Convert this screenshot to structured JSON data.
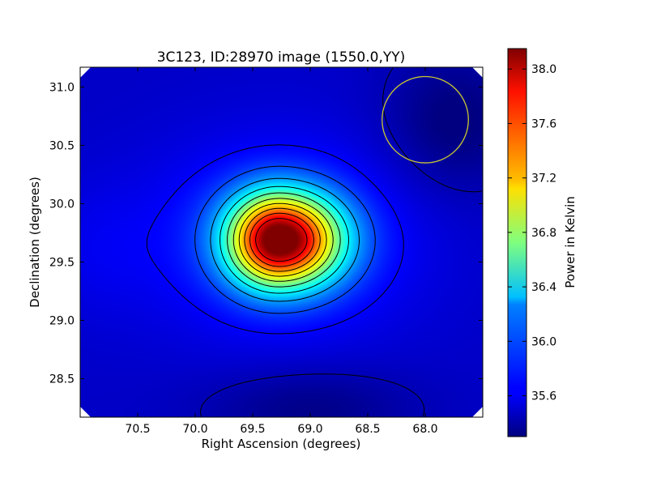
{
  "chart_data": {
    "type": "heatmap",
    "title": "3C123, ID:28970 image (1550.0,YY)",
    "xlabel": "Right Ascension (degrees)",
    "ylabel": "Declination (degrees)",
    "xlim": [
      71.0,
      67.5
    ],
    "ylim": [
      28.17,
      31.17
    ],
    "x_ticks": [
      70.5,
      70.0,
      69.5,
      69.0,
      68.5,
      68.0
    ],
    "y_ticks": [
      28.5,
      29.0,
      29.5,
      30.0,
      30.5,
      31.0
    ],
    "colorbar": {
      "label": "Power in Kelvin",
      "range": [
        35.3,
        38.15
      ],
      "ticks": [
        35.6,
        36.0,
        36.4,
        36.8,
        37.2,
        37.6,
        38.0
      ],
      "colormap": "jet"
    },
    "source_peak": {
      "ra": 69.27,
      "dec": 29.69,
      "power": 38.1
    },
    "beam_circle": {
      "ra": 68.0,
      "dec": 30.72,
      "radius_deg": 0.37,
      "color": "#c8c832"
    },
    "contour_levels": [
      35.45,
      35.65,
      35.85,
      36.1,
      36.35,
      36.6,
      36.85,
      37.1,
      37.35,
      37.6,
      37.85
    ],
    "grid": false
  }
}
